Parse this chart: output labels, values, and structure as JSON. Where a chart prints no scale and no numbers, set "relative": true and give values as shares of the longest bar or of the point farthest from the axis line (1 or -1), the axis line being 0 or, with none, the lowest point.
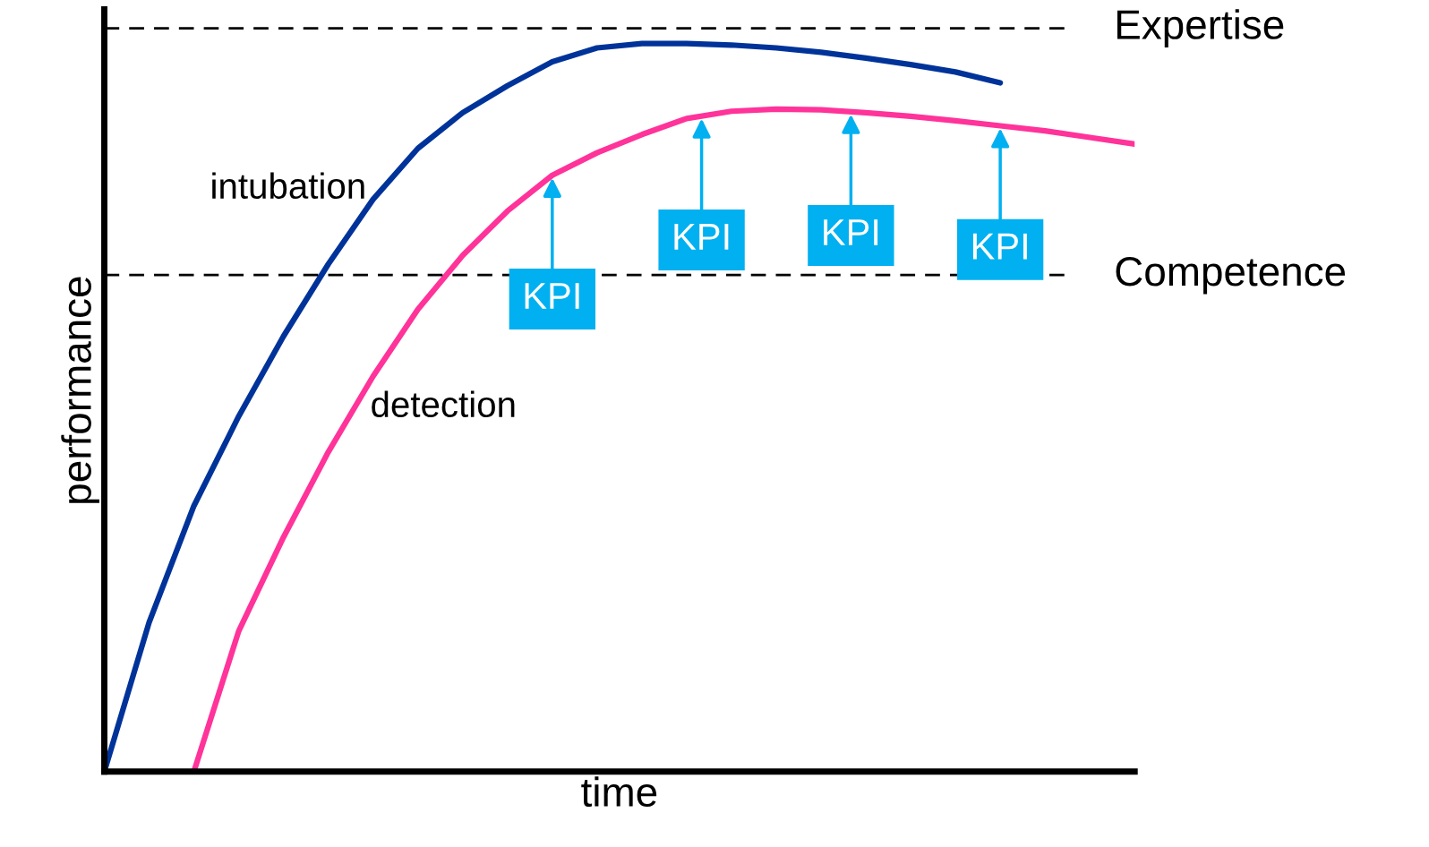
{
  "chart_data": {
    "type": "line",
    "relative": true,
    "xlabel": "time",
    "ylabel": "performance",
    "tick_labels": false,
    "legend": false,
    "marker": "none",
    "line_style": "solid",
    "categories": [
      null,
      null,
      null,
      null,
      null,
      null,
      null,
      null,
      null,
      null,
      null,
      null,
      null,
      null,
      null,
      null,
      null,
      null,
      null,
      null,
      null,
      null,
      null,
      null
    ],
    "series": [
      {
        "name": "intubation",
        "color": "#003399",
        "values": [
          0,
          0.205,
          0.365,
          0.488,
          0.598,
          0.697,
          0.786,
          0.856,
          0.905,
          0.942,
          0.975,
          0.994,
          1.0,
          1.0,
          0.998,
          0.994,
          0.988,
          0.98,
          0.971,
          0.961,
          0.946,
          null,
          null,
          null
        ]
      },
      {
        "name": "detection",
        "color": "#ff3399",
        "values": [
          null,
          null,
          0,
          0.193,
          0.322,
          0.439,
          0.543,
          0.635,
          0.709,
          0.77,
          0.819,
          0.85,
          0.875,
          0.897,
          0.907,
          0.91,
          0.909,
          0.905,
          0.9,
          0.894,
          0.887,
          0.88,
          0.871,
          0.862
        ]
      }
    ],
    "ref_lines": [
      {
        "axis": "y",
        "value": 1.021,
        "label": "Expertise",
        "color": "#000000",
        "line_style": "dashed"
      },
      {
        "axis": "y",
        "value": 0.682,
        "label": "Competence",
        "color": "#000000",
        "line_style": "dashed"
      }
    ],
    "annotations": [
      "KPI",
      "KPI",
      "KPI",
      "KPI"
    ]
  }
}
